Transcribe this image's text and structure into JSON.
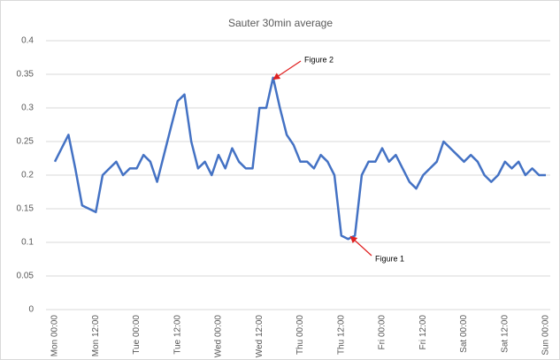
{
  "chart_data": {
    "type": "line",
    "title": "Sauter 30min average",
    "categories": [
      "Mon 00:00",
      null,
      null,
      null,
      null,
      null,
      "Mon 12:00",
      null,
      null,
      null,
      null,
      null,
      "Tue 00:00",
      null,
      null,
      null,
      null,
      null,
      "Tue 12:00",
      null,
      null,
      null,
      null,
      null,
      "Wed 00:00",
      null,
      null,
      null,
      null,
      null,
      "Wed 12:00",
      null,
      null,
      null,
      null,
      null,
      "Thu 00:00",
      null,
      null,
      null,
      null,
      null,
      "Thu 12:00",
      null,
      null,
      null,
      null,
      null,
      "Fri 00:00",
      null,
      null,
      null,
      null,
      null,
      "Fri 12:00",
      null,
      null,
      null,
      null,
      null,
      "Sat 00:00",
      null,
      null,
      null,
      null,
      null,
      "Sat 12:00",
      null,
      null,
      null,
      null,
      null,
      "Sun 00:00"
    ],
    "series": [
      {
        "name": "Sauter 30min average",
        "color": "#4472c4",
        "values": [
          0.22,
          0.24,
          0.26,
          0.21,
          0.155,
          0.15,
          0.145,
          0.2,
          0.21,
          0.22,
          0.2,
          0.21,
          0.21,
          0.23,
          0.22,
          0.19,
          0.23,
          0.27,
          0.31,
          0.32,
          0.25,
          0.21,
          0.22,
          0.2,
          0.23,
          0.21,
          0.24,
          0.22,
          0.21,
          0.21,
          0.3,
          0.3,
          0.345,
          0.3,
          0.26,
          0.245,
          0.22,
          0.22,
          0.21,
          0.23,
          0.22,
          0.2,
          0.11,
          0.105,
          0.11,
          0.2,
          0.22,
          0.22,
          0.24,
          0.22,
          0.23,
          0.21,
          0.19,
          0.18,
          0.2,
          0.21,
          0.22,
          0.25,
          0.24,
          0.23,
          0.22,
          0.23,
          0.22,
          0.2,
          0.19,
          0.2,
          0.22,
          0.21,
          0.22,
          0.2,
          0.21,
          0.2,
          0.2
        ]
      }
    ],
    "ylim": [
      0,
      0.4
    ],
    "yticks": [
      0,
      0.05,
      0.1,
      0.15,
      0.2,
      0.25,
      0.3,
      0.35,
      0.4
    ],
    "grid": true,
    "annotations": [
      "Figure 2",
      "Figure 1"
    ]
  }
}
